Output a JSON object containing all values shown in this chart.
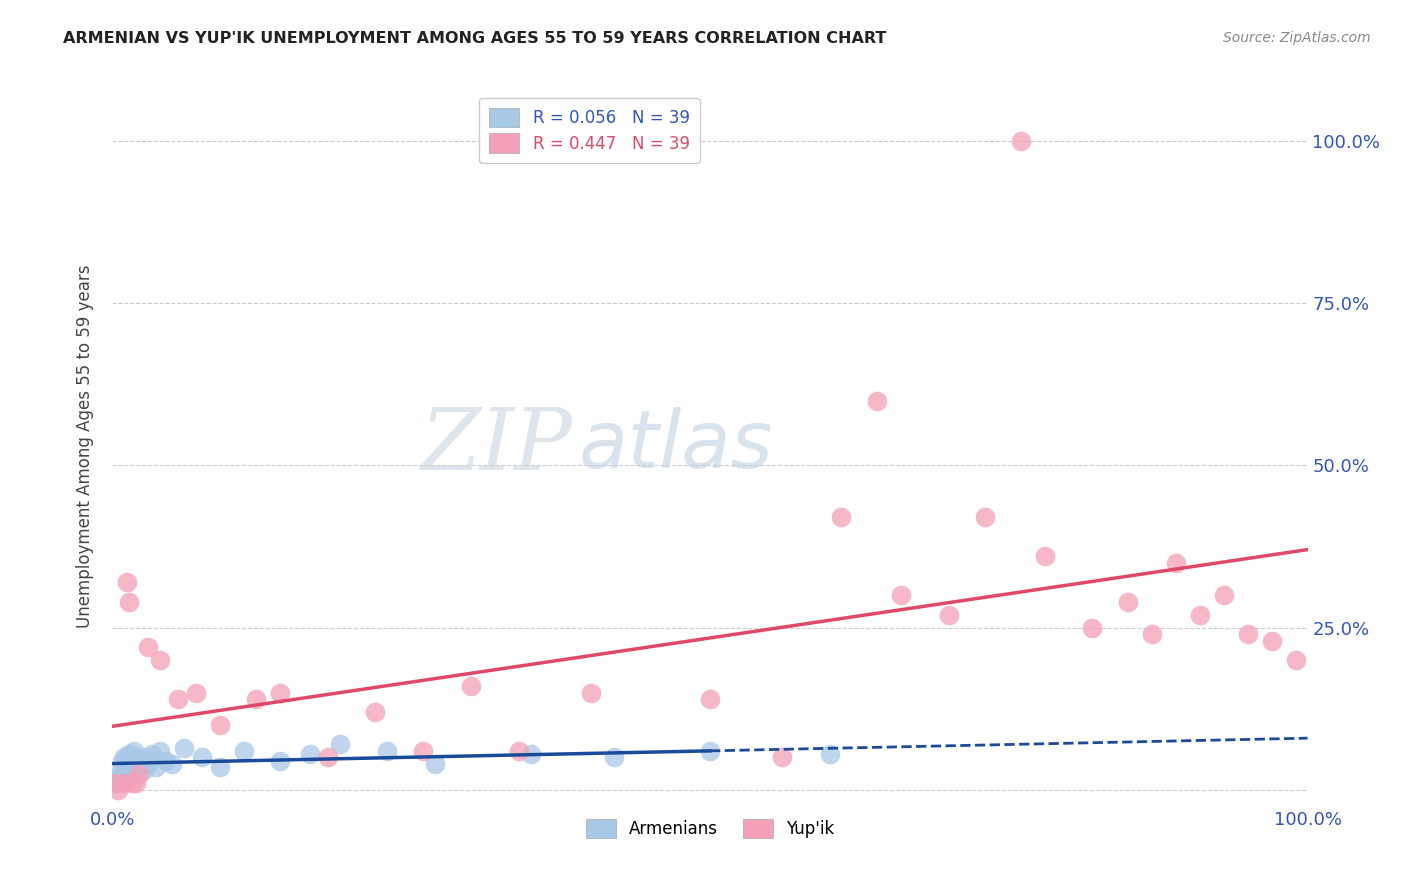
{
  "title": "ARMENIAN VS YUP'IK UNEMPLOYMENT AMONG AGES 55 TO 59 YEARS CORRELATION CHART",
  "source": "Source: ZipAtlas.com",
  "ylabel": "Unemployment Among Ages 55 to 59 years",
  "xlim": [
    0.0,
    1.0
  ],
  "ylim": [
    -0.02,
    1.08
  ],
  "armenian_R": "0.056",
  "armenian_N": "39",
  "yupik_R": "0.447",
  "yupik_N": "39",
  "armenian_color": "#a8c8e8",
  "yupik_color": "#f4a0b8",
  "armenian_line_color": "#1a4a9a",
  "yupik_line_color": "#e04868",
  "armenian_x": [
    0.003,
    0.005,
    0.007,
    0.008,
    0.009,
    0.01,
    0.011,
    0.012,
    0.013,
    0.014,
    0.015,
    0.016,
    0.017,
    0.018,
    0.019,
    0.02,
    0.022,
    0.024,
    0.026,
    0.028,
    0.03,
    0.033,
    0.036,
    0.04,
    0.045,
    0.05,
    0.06,
    0.075,
    0.09,
    0.11,
    0.14,
    0.165,
    0.19,
    0.23,
    0.27,
    0.35,
    0.42,
    0.5,
    0.6
  ],
  "armenian_y": [
    0.01,
    0.02,
    0.03,
    0.045,
    0.025,
    0.05,
    0.04,
    0.035,
    0.02,
    0.055,
    0.045,
    0.03,
    0.04,
    0.06,
    0.035,
    0.05,
    0.035,
    0.045,
    0.03,
    0.05,
    0.04,
    0.055,
    0.035,
    0.06,
    0.045,
    0.04,
    0.065,
    0.05,
    0.035,
    0.06,
    0.045,
    0.055,
    0.07,
    0.06,
    0.04,
    0.055,
    0.05,
    0.06,
    0.055
  ],
  "yupik_x": [
    0.003,
    0.005,
    0.01,
    0.012,
    0.014,
    0.016,
    0.02,
    0.022,
    0.03,
    0.04,
    0.055,
    0.07,
    0.09,
    0.12,
    0.14,
    0.18,
    0.22,
    0.26,
    0.3,
    0.34,
    0.4,
    0.5,
    0.56,
    0.61,
    0.64,
    0.66,
    0.7,
    0.73,
    0.76,
    0.78,
    0.82,
    0.85,
    0.87,
    0.89,
    0.91,
    0.93,
    0.95,
    0.97,
    0.99
  ],
  "yupik_y": [
    0.01,
    0.0,
    0.01,
    0.32,
    0.29,
    0.01,
    0.01,
    0.025,
    0.22,
    0.2,
    0.14,
    0.15,
    0.1,
    0.14,
    0.15,
    0.05,
    0.12,
    0.06,
    0.16,
    0.06,
    0.15,
    0.14,
    0.05,
    0.42,
    0.6,
    0.3,
    0.27,
    0.42,
    1.0,
    0.36,
    0.25,
    0.29,
    0.24,
    0.35,
    0.27,
    0.3,
    0.24,
    0.23,
    0.2
  ]
}
